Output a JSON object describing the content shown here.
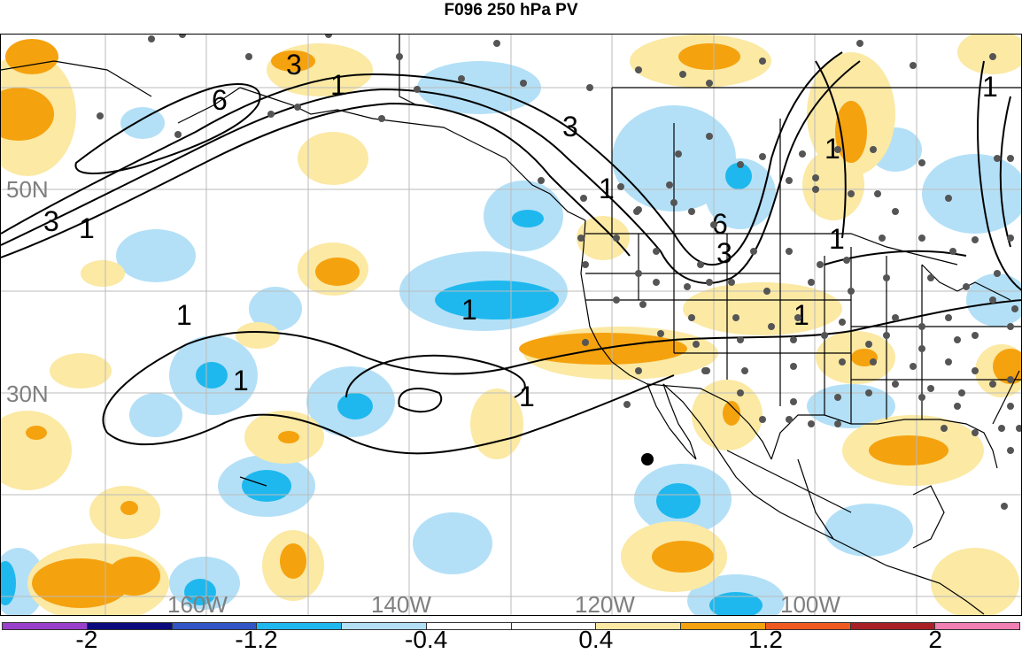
{
  "title": "F096 250 hPa PV",
  "map": {
    "lat_labels": [
      "50N",
      "30N"
    ],
    "lon_labels": [
      "160W",
      "140W",
      "120W",
      "100W"
    ],
    "contour_labels": [
      "3",
      "6",
      "1",
      "3",
      "1",
      "6",
      "3",
      "1",
      "1",
      "3",
      "1",
      "1",
      "1",
      "1",
      "1",
      "1"
    ],
    "colors": {
      "light_blue": "#b3e0f7",
      "blue": "#1fb8ee",
      "light_yellow": "#fbe9a4",
      "orange": "#f5a20f",
      "land_line": "#000000",
      "grid": "#bbbbbb",
      "station_dot": "#555555"
    }
  },
  "colorbar": {
    "colors": [
      "#9a3fcc",
      "#0b0b7e",
      "#2f55c6",
      "#1fb8ee",
      "#b3e0f7",
      "#ffffff",
      "#ffffff",
      "#fbe9a4",
      "#f5a20f",
      "#f05a20",
      "#a81f25",
      "#f07fb3"
    ],
    "labels": [
      "-2",
      "-1.2",
      "-0.4",
      "0.4",
      "1.2",
      "2"
    ]
  }
}
